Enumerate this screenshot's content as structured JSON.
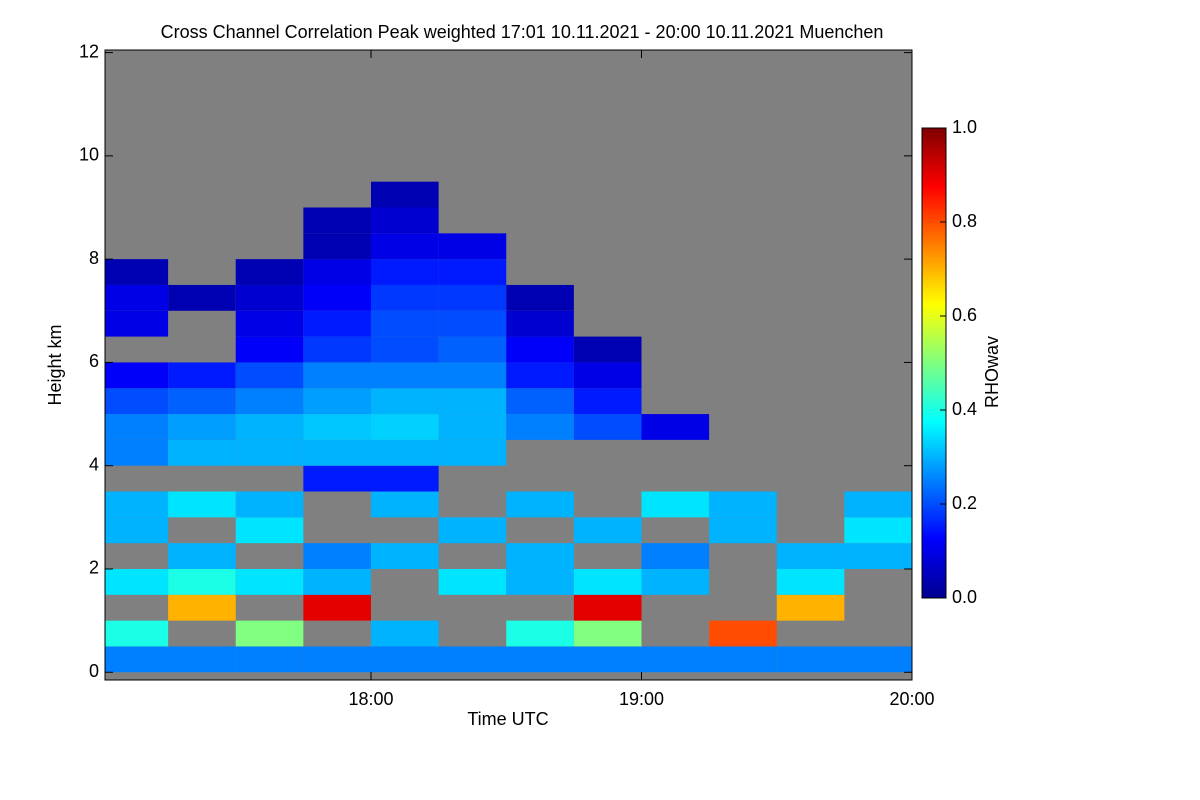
{
  "chart_data": {
    "type": "heatmap",
    "title": "Cross Channel Correlation Peak weighted   17:01 10.11.2021 - 20:00 10.11.2021 Muenchen",
    "x_label": "Time UTC",
    "y_label": "Height km",
    "colorbar_label": "RHOwav",
    "xlim": [
      17.0167,
      20.0
    ],
    "xticks": [
      {
        "value": 18,
        "label": "18:00"
      },
      {
        "value": 19,
        "label": "19:00"
      },
      {
        "value": 20,
        "label": "20:00"
      }
    ],
    "ylim": [
      -0.15,
      12.05
    ],
    "yticks": [
      0,
      2,
      4,
      6,
      8,
      10,
      12
    ],
    "colorbar_lim": [
      0,
      1
    ],
    "colorbar_ticks": [
      {
        "value": 0,
        "label": "0.0"
      },
      {
        "value": 0.2,
        "label": "0.2"
      },
      {
        "value": 0.4,
        "label": "0.4"
      },
      {
        "value": 0.6,
        "label": "0.6"
      },
      {
        "value": 0.8,
        "label": "0.8"
      },
      {
        "value": 1,
        "label": "1.0"
      }
    ],
    "colormap": "jet",
    "background": "#808080",
    "x_bins": [
      17,
      17.25,
      17.5,
      17.75,
      18,
      18.25,
      18.5,
      18.75,
      19,
      19.25,
      19.5,
      19.75,
      20
    ],
    "y_bins": [
      0,
      0.5,
      1,
      1.5,
      2,
      2.5,
      3,
      3.5,
      4,
      4.5,
      5,
      5.5,
      6,
      6.5,
      7,
      7.5,
      8,
      8.5,
      9,
      9.5,
      10,
      10.5,
      11,
      11.5,
      12
    ],
    "values": [
      [
        0.25,
        0.25,
        0.25,
        0.25,
        0.25,
        0.25,
        0.25,
        0.25,
        0.25,
        0.25,
        0.25,
        0.25
      ],
      [
        0.4,
        null,
        0.5,
        null,
        0.3,
        null,
        0.4,
        0.5,
        null,
        0.8,
        null,
        null
      ],
      [
        null,
        0.7,
        null,
        0.9,
        null,
        null,
        null,
        0.9,
        null,
        null,
        0.7,
        null
      ],
      [
        0.35,
        0.4,
        0.35,
        0.3,
        null,
        0.35,
        0.3,
        0.35,
        0.3,
        null,
        0.35,
        null
      ],
      [
        null,
        0.3,
        null,
        0.25,
        0.3,
        null,
        0.3,
        null,
        0.25,
        null,
        0.3,
        0.3
      ],
      [
        0.3,
        null,
        0.35,
        null,
        null,
        0.3,
        null,
        0.3,
        null,
        0.3,
        null,
        0.35
      ],
      [
        0.3,
        0.35,
        0.3,
        null,
        0.3,
        null,
        0.3,
        null,
        0.35,
        0.3,
        null,
        0.3
      ],
      [
        null,
        null,
        null,
        0.15,
        0.15,
        null,
        null,
        null,
        null,
        null,
        null,
        null
      ],
      [
        0.25,
        0.3,
        0.3,
        0.3,
        0.3,
        0.3,
        null,
        null,
        null,
        null,
        null,
        null
      ],
      [
        0.25,
        0.28,
        0.3,
        0.32,
        0.33,
        0.3,
        0.25,
        0.2,
        0.1,
        null,
        null,
        null
      ],
      [
        0.2,
        0.22,
        0.25,
        0.28,
        0.3,
        0.3,
        0.22,
        0.15,
        null,
        null,
        null,
        null
      ],
      [
        0.12,
        0.15,
        0.2,
        0.25,
        0.25,
        0.25,
        0.15,
        0.1,
        null,
        null,
        null,
        null
      ],
      [
        null,
        null,
        0.12,
        0.18,
        0.2,
        0.22,
        0.12,
        0.05,
        null,
        null,
        null,
        null
      ],
      [
        0.1,
        null,
        0.1,
        0.15,
        0.2,
        0.2,
        0.08,
        null,
        null,
        null,
        null,
        null
      ],
      [
        0.1,
        0.05,
        0.08,
        0.12,
        0.18,
        0.18,
        0.05,
        null,
        null,
        null,
        null,
        null
      ],
      [
        0.05,
        null,
        0.05,
        0.1,
        0.15,
        0.15,
        null,
        null,
        null,
        null,
        null,
        null
      ],
      [
        null,
        null,
        null,
        0.05,
        0.1,
        0.1,
        null,
        null,
        null,
        null,
        null,
        null
      ],
      [
        null,
        null,
        null,
        0.05,
        0.08,
        null,
        null,
        null,
        null,
        null,
        null,
        null
      ],
      [
        null,
        null,
        null,
        null,
        0.05,
        null,
        null,
        null,
        null,
        null,
        null,
        null
      ],
      [
        null,
        null,
        null,
        null,
        null,
        null,
        null,
        null,
        null,
        null,
        null,
        null
      ],
      [
        null,
        null,
        null,
        null,
        null,
        null,
        null,
        null,
        null,
        null,
        null,
        null
      ],
      [
        null,
        null,
        null,
        null,
        null,
        null,
        null,
        null,
        null,
        null,
        null,
        null
      ],
      [
        null,
        null,
        null,
        null,
        null,
        null,
        null,
        null,
        null,
        null,
        null,
        null
      ],
      [
        null,
        null,
        null,
        null,
        null,
        null,
        null,
        null,
        null,
        null,
        null,
        null
      ]
    ]
  }
}
